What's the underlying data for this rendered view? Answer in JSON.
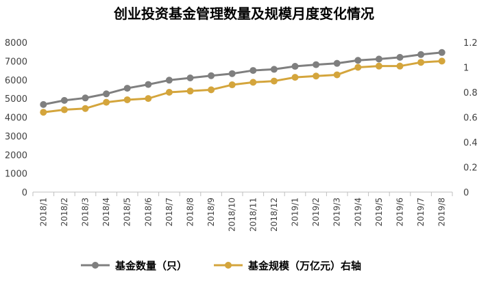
{
  "chart_data": {
    "type": "line",
    "title": "创业投资基金管理数量及规模月度变化情况",
    "categories": [
      "2018/1",
      "2018/2",
      "2018/3",
      "2018/4",
      "2018/5",
      "2018/6",
      "2018/7",
      "2018/8",
      "2018/9",
      "2018/10",
      "2018/11",
      "2018/12",
      "2019/1",
      "2019/2",
      "2019/3",
      "2019/4",
      "2019/5",
      "2019/6",
      "2019/7",
      "2019/8"
    ],
    "y_left": {
      "lim": [
        0,
        8000
      ],
      "ticks": [
        "0",
        "1000",
        "2000",
        "3000",
        "4000",
        "5000",
        "6000",
        "7000",
        "8000"
      ]
    },
    "y_right": {
      "lim": [
        0,
        1.2
      ],
      "ticks": [
        "0",
        "0.2",
        "0.4",
        "0.6",
        "0.8",
        "1",
        "1.2"
      ]
    },
    "grid": false,
    "legend_position": "bottom",
    "series": [
      {
        "name": "基金数量（只）",
        "axis": "left",
        "color": "#7f7f7f",
        "values": [
          4680,
          4900,
          5030,
          5250,
          5550,
          5750,
          5980,
          6100,
          6220,
          6330,
          6500,
          6560,
          6720,
          6810,
          6880,
          7040,
          7110,
          7200,
          7350,
          7460
        ]
      },
      {
        "name": "基金规模（万亿元）右轴",
        "axis": "right",
        "color": "#d4a53c",
        "values": [
          0.64,
          0.66,
          0.67,
          0.72,
          0.74,
          0.75,
          0.8,
          0.81,
          0.82,
          0.86,
          0.88,
          0.89,
          0.92,
          0.93,
          0.94,
          1.0,
          1.01,
          1.01,
          1.04,
          1.05
        ]
      }
    ]
  }
}
